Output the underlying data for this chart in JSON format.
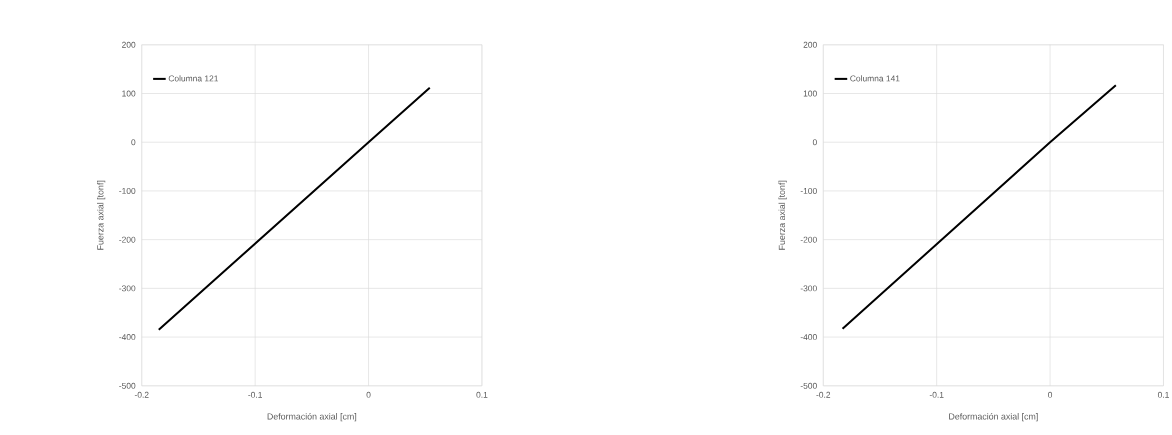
{
  "chart_data": [
    {
      "type": "line",
      "xlabel": "Deformación axial [cm]",
      "ylabel": "Fuerza axial [tonf]",
      "series": [
        {
          "name": "Columna 121",
          "color": "#000000",
          "x": [
            -0.185,
            0,
            0.054
          ],
          "values": [
            -385,
            0,
            112
          ]
        }
      ],
      "xlim": [
        -0.2,
        0.1
      ],
      "ylim": [
        -500,
        200
      ],
      "xticks": [
        -0.2,
        -0.1,
        0,
        0.1
      ],
      "yticks": [
        -500,
        -400,
        -300,
        -200,
        -100,
        0,
        100,
        200
      ],
      "grid": true,
      "legend": "top left"
    },
    {
      "type": "line",
      "xlabel": "Deformación axial [cm]",
      "ylabel": "Fuerza axial [tonf]",
      "series": [
        {
          "name": "Columna 141",
          "color": "#000000",
          "x": [
            -0.183,
            0,
            0.058
          ],
          "values": [
            -383,
            0,
            117
          ]
        }
      ],
      "xlim": [
        -0.2,
        0.1
      ],
      "ylim": [
        -500,
        200
      ],
      "xticks": [
        -0.2,
        -0.1,
        0,
        0.1
      ],
      "yticks": [
        -500,
        -400,
        -300,
        -200,
        -100,
        0,
        100,
        200
      ],
      "grid": true,
      "legend": "top left"
    }
  ]
}
